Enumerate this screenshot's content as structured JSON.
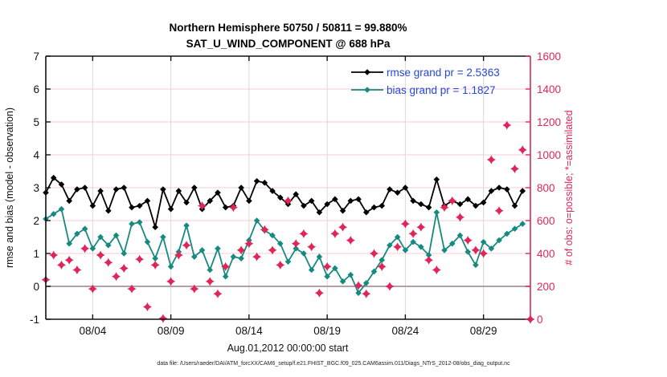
{
  "figure": {
    "title_line1": "Northern Hemisphere 50750 / 50811 = 99.880%",
    "title_line2": "SAT_U_WIND_COMPONENT @ 688 hPa",
    "footer": "data file: /Users/raeder/DAI/ATM_forcXX/CAM6_setup/f.e21.FHIST_BGC.f09_025.CAM6assim.011/Diags_NTrS_2012-08/obs_diag_output.nc"
  },
  "style": {
    "obs_color": "#e02558",
    "bias_color": "#158a80",
    "rmse_color": "#000000",
    "legend_text_color": "#2646d4",
    "h_grid_color": "#f5ccd6",
    "v_grid_color": "#ded7da",
    "zero_line_color": "#b3a1aa",
    "axis_color": "#111111"
  },
  "chart_data": {
    "type": "line",
    "title": "Northern Hemisphere 50750 / 50811 = 99.880% — SAT_U_WIND_COMPONENT @ 688 hPa",
    "xlabel": "Aug.01,2012 00:00:00 start",
    "left_axis": {
      "label": "rmse and bias (model - observation)",
      "min": -1,
      "max": 7,
      "tick_step": 1
    },
    "right_axis": {
      "label": "# of obs: o=possible; *=assimilated",
      "min": 0,
      "max": 1600,
      "tick_step": 200
    },
    "x_axis": {
      "range_days": [
        0,
        31
      ],
      "tick_positions_days": [
        3,
        8,
        13,
        18,
        23,
        28
      ],
      "tick_labels": [
        "08/04",
        "08/09",
        "08/14",
        "08/19",
        "08/24",
        "08/29"
      ]
    },
    "legend": [
      {
        "series": "rmse",
        "label": "rmse grand pr = 2.5363"
      },
      {
        "series": "bias",
        "label": "bias grand pr = 1.1827"
      }
    ],
    "t_days": [
      0,
      0.5,
      1,
      1.5,
      2,
      2.5,
      3,
      3.5,
      4,
      4.5,
      5,
      5.5,
      6,
      6.5,
      7,
      7.5,
      8,
      8.5,
      9,
      9.5,
      10,
      10.5,
      11,
      11.5,
      12,
      12.5,
      13,
      13.5,
      14,
      14.5,
      15,
      15.5,
      16,
      16.5,
      17,
      17.5,
      18,
      18.5,
      19,
      19.5,
      20,
      20.5,
      21,
      21.5,
      22,
      22.5,
      23,
      23.5,
      24,
      24.5,
      25,
      25.5,
      26,
      26.5,
      27,
      27.5,
      28,
      28.5,
      29,
      29.5,
      30,
      30.5
    ],
    "series": [
      {
        "name": "rmse",
        "axis": "left",
        "marker": "diamond",
        "values": [
          2.85,
          3.3,
          3.1,
          2.6,
          2.95,
          3.0,
          2.45,
          2.9,
          2.3,
          2.95,
          3.0,
          2.4,
          2.45,
          2.6,
          1.8,
          2.95,
          2.35,
          2.9,
          2.55,
          3.0,
          2.35,
          2.6,
          2.85,
          2.4,
          2.45,
          3.0,
          2.6,
          3.2,
          3.15,
          2.9,
          2.7,
          2.5,
          2.8,
          2.45,
          2.6,
          2.25,
          2.5,
          2.65,
          2.3,
          2.6,
          2.65,
          2.25,
          2.4,
          2.45,
          2.95,
          2.85,
          3.0,
          2.6,
          2.5,
          2.4,
          3.25,
          2.45,
          2.6,
          2.5,
          2.65,
          2.45,
          2.55,
          2.9,
          3.0,
          2.95,
          2.45,
          2.9
        ]
      },
      {
        "name": "bias",
        "axis": "left",
        "marker": "diamond",
        "values": [
          2.05,
          2.2,
          2.35,
          1.3,
          1.6,
          1.75,
          1.15,
          1.5,
          1.25,
          1.55,
          1.0,
          1.9,
          1.95,
          1.35,
          0.85,
          1.5,
          0.6,
          1.05,
          1.85,
          0.9,
          1.1,
          0.5,
          1.15,
          0.3,
          0.9,
          0.85,
          1.4,
          2.0,
          1.7,
          1.55,
          1.3,
          0.75,
          1.15,
          1.0,
          0.5,
          0.9,
          0.3,
          0.55,
          0.15,
          0.35,
          -0.2,
          0.1,
          0.45,
          0.8,
          1.25,
          1.5,
          1.1,
          1.35,
          1.2,
          0.95,
          2.25,
          1.1,
          1.3,
          1.55,
          1.05,
          0.65,
          1.35,
          1.15,
          1.4,
          1.6,
          1.75,
          1.9
        ]
      },
      {
        "name": "num_obs",
        "axis": "right",
        "marker": "star-diamond",
        "t": [
          0,
          0.5,
          1,
          1.5,
          2,
          2.5,
          3,
          3.5,
          4,
          4.5,
          5,
          5.5,
          6,
          6.5,
          7,
          7.5,
          8,
          8.5,
          9,
          9.5,
          10,
          10.5,
          11,
          11.5,
          12,
          12.5,
          13,
          13.5,
          14,
          14.5,
          15,
          15.5,
          16,
          16.5,
          17,
          17.5,
          18,
          18.5,
          19,
          19.5,
          20,
          20.5,
          21,
          21.5,
          22,
          22.5,
          23,
          23.5,
          24,
          24.5,
          25,
          25.5,
          26,
          26.5,
          27,
          27.5,
          28,
          28.5,
          29,
          29.5,
          30,
          30.5,
          31
        ],
        "values": [
          240,
          390,
          330,
          360,
          300,
          430,
          185,
          390,
          345,
          260,
          310,
          185,
          365,
          75,
          330,
          5,
          230,
          390,
          450,
          185,
          690,
          230,
          155,
          320,
          680,
          420,
          460,
          380,
          545,
          420,
          330,
          720,
          460,
          520,
          440,
          160,
          320,
          520,
          560,
          480,
          205,
          155,
          400,
          320,
          200,
          440,
          580,
          520,
          560,
          360,
          300,
          680,
          720,
          620,
          480,
          420,
          400,
          970,
          660,
          1180,
          915,
          1030,
          0
        ]
      }
    ]
  }
}
